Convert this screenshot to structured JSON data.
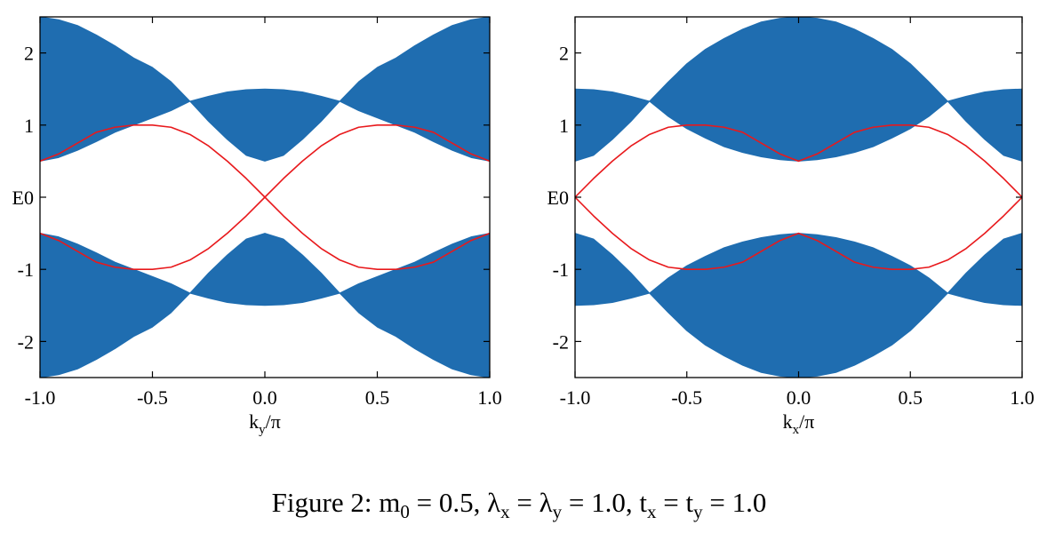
{
  "chart_data": [
    {
      "type": "band",
      "ylabel": "E",
      "xlabel": [
        "k",
        "y",
        "/π"
      ],
      "x": [
        -1.0,
        -0.917,
        -0.833,
        -0.75,
        -0.667,
        -0.583,
        -0.5,
        -0.417,
        -0.333,
        -0.25,
        -0.167,
        -0.083,
        0.0,
        0.083,
        0.167,
        0.25,
        0.333,
        0.417,
        0.5,
        0.583,
        0.667,
        0.75,
        0.833,
        0.917,
        1.0
      ],
      "xlim": [
        -1.0,
        1.0
      ],
      "ylim": [
        -2.5,
        2.5
      ],
      "xticks": [
        {
          "value": -1.0,
          "label": "-1.0"
        },
        {
          "value": -0.5,
          "label": "-0.5"
        },
        {
          "value": 0.0,
          "label": "0.0"
        },
        {
          "value": 0.5,
          "label": "0.5"
        },
        {
          "value": 1.0,
          "label": "1.0"
        }
      ],
      "yticks": [
        -2,
        -1,
        0,
        1,
        2
      ],
      "bands": [
        {
          "color": "#1f6db0",
          "upper": [
            2.5,
            2.46,
            2.38,
            2.25,
            2.1,
            1.93,
            1.8,
            1.6,
            1.33,
            1.4,
            1.46,
            1.49,
            1.5,
            1.49,
            1.46,
            1.4,
            1.33,
            1.6,
            1.8,
            1.93,
            2.1,
            2.25,
            2.38,
            2.46,
            2.5
          ],
          "lower": [
            0.5,
            0.55,
            0.65,
            0.77,
            0.9,
            1.0,
            1.1,
            1.2,
            1.33,
            1.05,
            0.8,
            0.58,
            0.5,
            0.58,
            0.8,
            1.05,
            1.33,
            1.2,
            1.1,
            1.0,
            0.9,
            0.77,
            0.65,
            0.55,
            0.5
          ]
        },
        {
          "color": "#1f6db0",
          "upper": [
            -0.5,
            -0.55,
            -0.65,
            -0.77,
            -0.9,
            -1.0,
            -1.1,
            -1.2,
            -1.33,
            -1.05,
            -0.8,
            -0.58,
            -0.5,
            -0.58,
            -0.8,
            -1.05,
            -1.33,
            -1.2,
            -1.1,
            -1.0,
            -0.9,
            -0.77,
            -0.65,
            -0.55,
            -0.5
          ],
          "lower": [
            -2.5,
            -2.46,
            -2.38,
            -2.25,
            -2.1,
            -1.93,
            -1.8,
            -1.6,
            -1.33,
            -1.4,
            -1.46,
            -1.49,
            -1.5,
            -1.49,
            -1.46,
            -1.4,
            -1.33,
            -1.6,
            -1.8,
            -1.93,
            -2.1,
            -2.25,
            -2.38,
            -2.46,
            -2.5
          ]
        }
      ],
      "series": [
        {
          "color": "#e8191c",
          "values": [
            0.5,
            0.6,
            0.75,
            0.9,
            0.97,
            1.0,
            1.0,
            0.97,
            0.87,
            0.71,
            0.5,
            0.26,
            0.0,
            -0.26,
            -0.5,
            -0.71,
            -0.87,
            -0.97,
            -1.0,
            -1.0,
            -0.97,
            -0.9,
            -0.75,
            -0.6,
            -0.5
          ]
        },
        {
          "color": "#e8191c",
          "values": [
            -0.5,
            -0.6,
            -0.75,
            -0.9,
            -0.97,
            -1.0,
            -1.0,
            -0.97,
            -0.87,
            -0.71,
            -0.5,
            -0.26,
            0.0,
            0.26,
            0.5,
            0.71,
            0.87,
            0.97,
            1.0,
            1.0,
            0.97,
            0.9,
            0.75,
            0.6,
            0.5
          ]
        }
      ]
    },
    {
      "type": "band",
      "ylabel": "E",
      "xlabel": [
        "k",
        "x",
        "/π"
      ],
      "x": [
        -1.0,
        -0.917,
        -0.833,
        -0.75,
        -0.667,
        -0.583,
        -0.5,
        -0.417,
        -0.333,
        -0.25,
        -0.167,
        -0.083,
        0.0,
        0.083,
        0.167,
        0.25,
        0.333,
        0.417,
        0.5,
        0.583,
        0.667,
        0.75,
        0.833,
        0.917,
        1.0
      ],
      "xlim": [
        -1.0,
        1.0
      ],
      "ylim": [
        -2.5,
        2.5
      ],
      "xticks": [
        {
          "value": -1.0,
          "label": "-1.0"
        },
        {
          "value": -0.5,
          "label": "-0.5"
        },
        {
          "value": 0.0,
          "label": "0.0"
        },
        {
          "value": 0.5,
          "label": "0.5"
        },
        {
          "value": 1.0,
          "label": "1.0"
        }
      ],
      "yticks": [
        -2,
        -1,
        0,
        1,
        2
      ],
      "bands": [
        {
          "color": "#1f6db0",
          "upper": [
            1.5,
            1.49,
            1.46,
            1.4,
            1.33,
            1.6,
            1.85,
            2.05,
            2.2,
            2.33,
            2.43,
            2.48,
            2.5,
            2.48,
            2.43,
            2.33,
            2.2,
            2.05,
            1.85,
            1.6,
            1.33,
            1.4,
            1.46,
            1.49,
            1.5
          ],
          "lower": [
            0.5,
            0.58,
            0.8,
            1.05,
            1.33,
            1.12,
            0.95,
            0.82,
            0.7,
            0.62,
            0.56,
            0.52,
            0.5,
            0.52,
            0.56,
            0.62,
            0.7,
            0.82,
            0.95,
            1.12,
            1.33,
            1.05,
            0.8,
            0.58,
            0.5
          ]
        },
        {
          "color": "#1f6db0",
          "upper": [
            -0.5,
            -0.58,
            -0.8,
            -1.05,
            -1.33,
            -1.12,
            -0.95,
            -0.82,
            -0.7,
            -0.62,
            -0.56,
            -0.52,
            -0.5,
            -0.52,
            -0.56,
            -0.62,
            -0.7,
            -0.82,
            -0.95,
            -1.12,
            -1.33,
            -1.05,
            -0.8,
            -0.58,
            -0.5
          ],
          "lower": [
            -1.5,
            -1.49,
            -1.46,
            -1.4,
            -1.33,
            -1.6,
            -1.85,
            -2.05,
            -2.2,
            -2.33,
            -2.43,
            -2.48,
            -2.5,
            -2.48,
            -2.43,
            -2.33,
            -2.2,
            -2.05,
            -1.85,
            -1.6,
            -1.33,
            -1.4,
            -1.46,
            -1.49,
            -1.5
          ]
        }
      ],
      "series": [
        {
          "color": "#e8191c",
          "values": [
            0.0,
            0.26,
            0.5,
            0.71,
            0.87,
            0.97,
            1.0,
            1.0,
            0.97,
            0.9,
            0.75,
            0.6,
            0.5,
            0.6,
            0.75,
            0.9,
            0.97,
            1.0,
            1.0,
            0.97,
            0.87,
            0.71,
            0.5,
            0.26,
            0.0
          ]
        },
        {
          "color": "#e8191c",
          "values": [
            0.0,
            -0.26,
            -0.5,
            -0.71,
            -0.87,
            -0.97,
            -1.0,
            -1.0,
            -0.97,
            -0.9,
            -0.75,
            -0.6,
            -0.5,
            -0.6,
            -0.75,
            -0.9,
            -0.97,
            -1.0,
            -1.0,
            -0.97,
            -0.87,
            -0.71,
            -0.5,
            -0.26,
            0.0
          ]
        }
      ]
    }
  ],
  "caption": [
    "Figure 2:  m",
    "0",
    " = 0.5, λ",
    "x",
    " = λ",
    "y",
    " = 1.0, t",
    "x",
    " = t",
    "y",
    " = 1.0"
  ]
}
